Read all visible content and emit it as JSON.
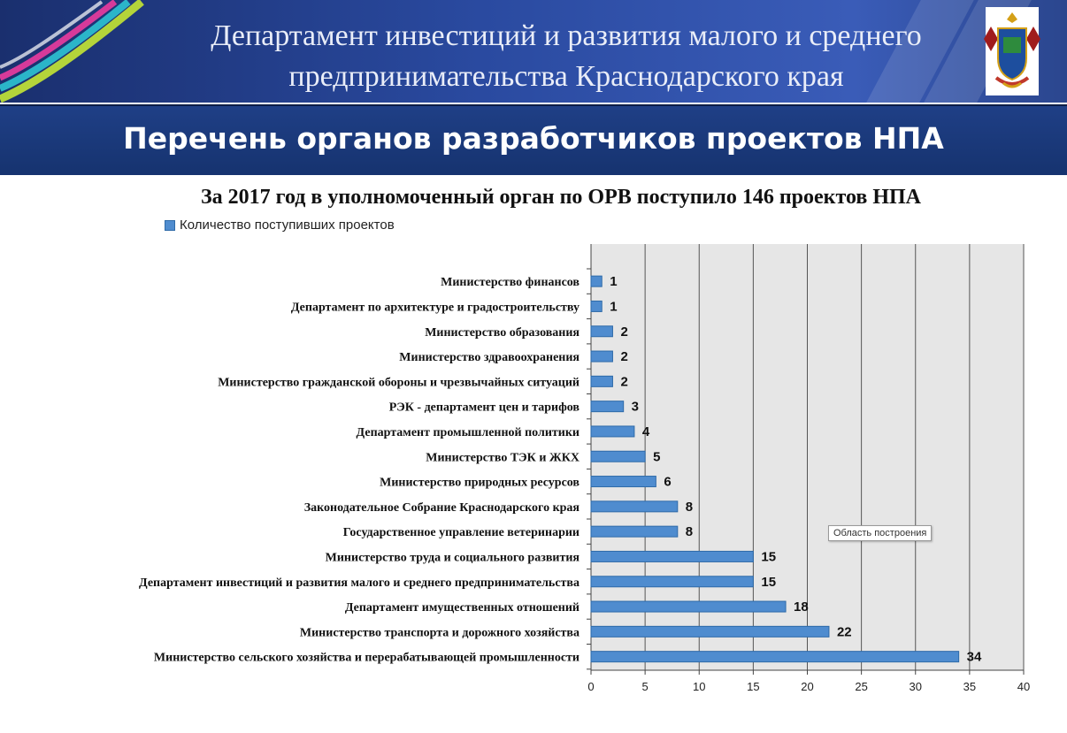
{
  "header": {
    "title_line1": "Департамент инвестиций и развития малого и среднего",
    "title_line2": "предпринимательства Краснодарского края"
  },
  "subheader": {
    "title": "Перечень органов разработчиков проектов НПА"
  },
  "tooltip": "Область построения",
  "colors": {
    "bar": "#4f8ccf",
    "bar_border": "#2e6aa8",
    "plot_bg": "#e6e6e6",
    "header": "#2a4aa0"
  },
  "chart_data": {
    "type": "bar",
    "orientation": "horizontal",
    "title": "За 2017 год в уполномоченный орган по ОРВ поступило 146 проектов НПА",
    "legend_position": "top-left",
    "grid": true,
    "xlim": [
      0,
      40
    ],
    "x_ticks": [
      0,
      5,
      10,
      15,
      20,
      25,
      30,
      35,
      40
    ],
    "categories": [
      "Министерство финансов",
      "Департамент по архитектуре и градостроительству",
      "Министерство образования",
      "Министерство здравоохранения",
      "Министерство гражданской обороны и чрезвычайных ситуаций",
      "РЭК - департамент цен и тарифов",
      "Департамент промышленной политики",
      "Министерство ТЭК и ЖКХ",
      "Министерство природных ресурсов",
      "Законодательное Собрание Краснодарского края",
      "Государственное управление ветеринарии",
      "Министерство труда и социального развития",
      "Департамент инвестиций и развития малого и среднего предпринимательства",
      "Департамент имущественных отношений",
      "Министерство транспорта и дорожного хозяйства",
      "Министерство сельского хозяйства и перерабатывающей промышленности"
    ],
    "series": [
      {
        "name": "Количество поступивших проектов",
        "values": [
          1,
          1,
          2,
          2,
          2,
          3,
          4,
          5,
          6,
          8,
          8,
          15,
          15,
          18,
          22,
          34
        ]
      }
    ]
  }
}
